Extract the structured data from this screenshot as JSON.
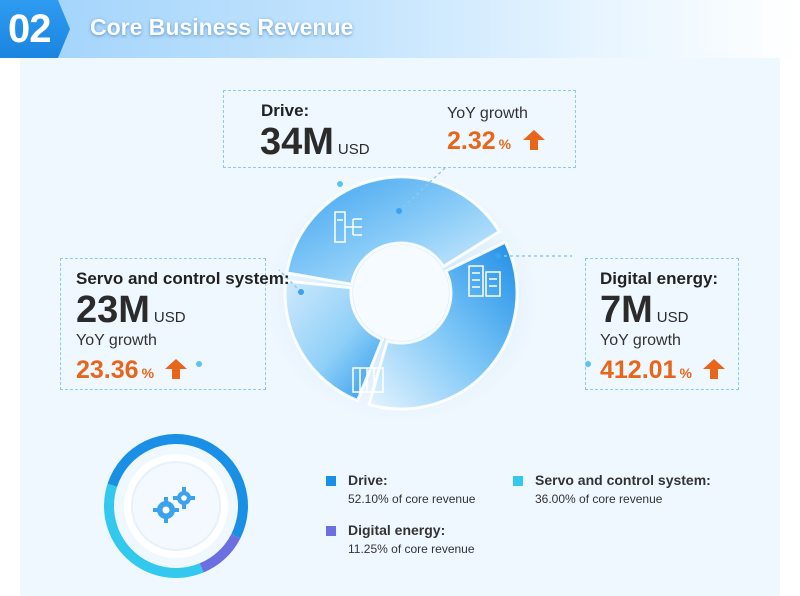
{
  "header": {
    "number": "02",
    "title": "Core Business Revenue"
  },
  "drive": {
    "label": "Drive:",
    "value": "34M",
    "unit": "USD",
    "yoy_label": "YoY growth",
    "yoy_value": "2.32",
    "yoy_unit": "%"
  },
  "servo": {
    "label": "Servo and control system:",
    "value": "23M",
    "unit": "USD",
    "yoy_label": "YoY growth",
    "yoy_value": "23.36",
    "yoy_unit": "%"
  },
  "digital": {
    "label": "Digital energy:",
    "value": "7M",
    "unit": "USD",
    "yoy_label": "YoY growth",
    "yoy_value": "412.01",
    "yoy_unit": "%"
  },
  "legend": [
    {
      "name": "Drive:",
      "desc": "52.10% of core revenue",
      "color": "#1a8fe6"
    },
    {
      "name": "Servo and control system:",
      "desc": "36.00% of core revenue",
      "color": "#33c9ef"
    },
    {
      "name": "Digital energy:",
      "desc": "11.25% of core revenue",
      "color": "#6b6fe0"
    }
  ],
  "colors": {
    "accent_blue": "#1a8fe6",
    "cyan": "#33c9ef",
    "purple": "#6b6fe0",
    "orange": "#e8651a"
  },
  "icons": {
    "drive": "network-panel-icon",
    "servo": "server-rack-icon",
    "digital": "server-tower-icon",
    "center": "gears-icon",
    "growth": "arrow-up-icon"
  },
  "chart_data": {
    "type": "pie",
    "categories": [
      "Drive",
      "Servo and control system",
      "Digital energy"
    ],
    "values": [
      52.1,
      36.0,
      11.25
    ],
    "revenue_musd": [
      34,
      23,
      7
    ],
    "yoy_growth_pct": [
      2.32,
      23.36,
      412.01
    ],
    "unit": "% of core revenue"
  }
}
